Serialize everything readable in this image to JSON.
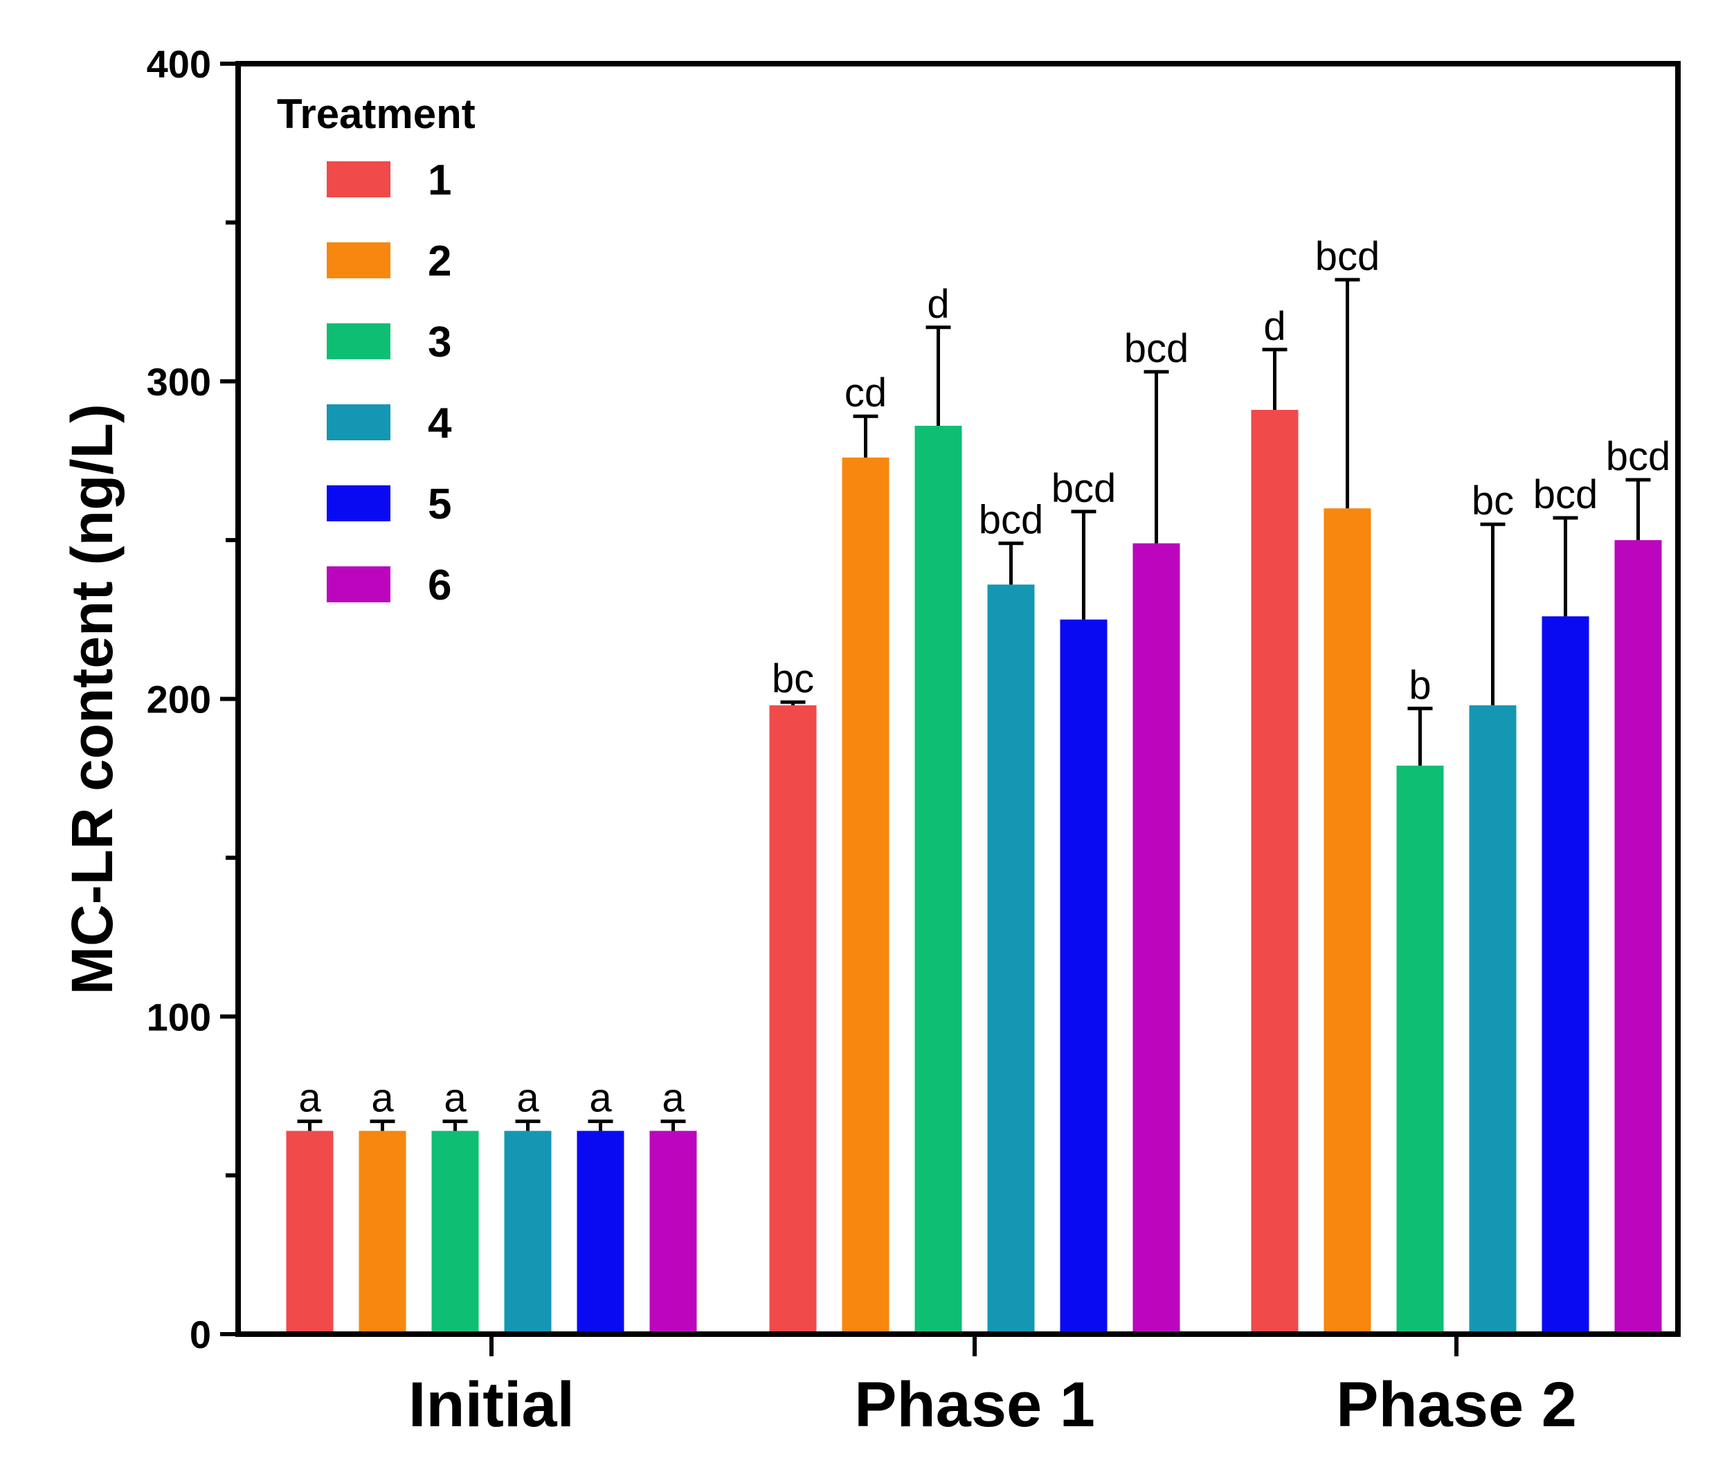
{
  "chart_data": {
    "type": "bar",
    "title": "",
    "xlabel": "",
    "ylabel": "MC-LR content (ng/L)",
    "ylim": [
      0,
      400
    ],
    "yticks": [
      0,
      100,
      200,
      300,
      400
    ],
    "categories": [
      "Initial",
      "Phase 1",
      "Phase 2"
    ],
    "legend": {
      "title": "Treatment",
      "placement": "top-left"
    },
    "series": [
      {
        "name": "1",
        "color": "#F04A4A",
        "values": [
          64,
          198,
          291
        ],
        "errors": [
          3,
          1,
          19
        ],
        "labels": [
          "a",
          "bc",
          "d"
        ]
      },
      {
        "name": "2",
        "color": "#F7870E",
        "values": [
          64,
          276,
          260
        ],
        "errors": [
          3,
          13,
          72
        ],
        "labels": [
          "a",
          "cd",
          "bcd"
        ]
      },
      {
        "name": "3",
        "color": "#0EBF73",
        "values": [
          64,
          286,
          179
        ],
        "errors": [
          3,
          31,
          18
        ],
        "labels": [
          "a",
          "d",
          "b"
        ]
      },
      {
        "name": "4",
        "color": "#1497B2",
        "values": [
          64,
          236,
          198
        ],
        "errors": [
          3,
          13,
          57
        ],
        "labels": [
          "a",
          "bcd",
          "bc"
        ]
      },
      {
        "name": "5",
        "color": "#0A0AF2",
        "values": [
          64,
          225,
          226
        ],
        "errors": [
          3,
          34,
          31
        ],
        "labels": [
          "a",
          "bcd",
          "bcd"
        ]
      },
      {
        "name": "6",
        "color": "#BB06BD",
        "values": [
          64,
          249,
          250
        ],
        "errors": [
          3,
          54,
          19
        ],
        "labels": [
          "a",
          "bcd",
          "bcd"
        ]
      }
    ]
  }
}
